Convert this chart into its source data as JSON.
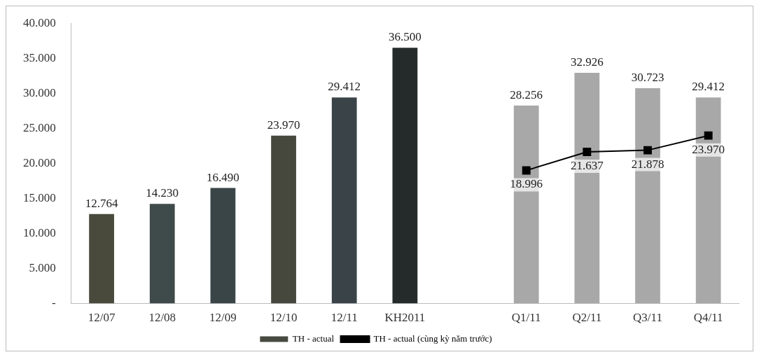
{
  "chart_data": {
    "type": "bar",
    "categories": [
      "12/07",
      "12/08",
      "12/09",
      "12/10",
      "12/11",
      "KH2011",
      null,
      "Q1/11",
      "Q2/11",
      "Q3/11",
      "Q4/11"
    ],
    "ylim": [
      0,
      40000
    ],
    "yticks": [
      {
        "value": 0,
        "label": "-"
      },
      {
        "value": 5000,
        "label": "5.000"
      },
      {
        "value": 10000,
        "label": "10.000"
      },
      {
        "value": 15000,
        "label": "15.000"
      },
      {
        "value": 20000,
        "label": "20.000"
      },
      {
        "value": 25000,
        "label": "25.000"
      },
      {
        "value": 30000,
        "label": "30.000"
      },
      {
        "value": 35000,
        "label": "35.000"
      },
      {
        "value": 40000,
        "label": "40.000"
      }
    ],
    "grid": false,
    "legend": "bottom",
    "series": [
      {
        "name": "TH - actual",
        "color": "#474a40",
        "colors": [
          "#4a4a3c",
          "#3f4a4a",
          "#3a4548",
          "#46483e",
          "#3a4448",
          "#252b2b",
          null,
          "#a8a8a8",
          "#a8a8a8",
          "#a8a8a8",
          "#a8a8a8"
        ],
        "values": [
          12764,
          14230,
          16490,
          23970,
          29412,
          36500,
          null,
          28256,
          32926,
          30723,
          29412
        ],
        "value_labels": [
          "12.764",
          "14.230",
          "16.490",
          "23.970",
          "29.412",
          "36.500",
          null,
          "28.256",
          "32.926",
          "30.723",
          "29.412"
        ]
      },
      {
        "name": "TH - actual (cùng kỳ năm trước)",
        "type": "line",
        "color": "#000000",
        "marker": "square",
        "line_style": "solid",
        "values": [
          null,
          null,
          null,
          null,
          null,
          null,
          null,
          18996,
          21637,
          21878,
          23970
        ],
        "value_labels": [
          null,
          null,
          null,
          null,
          null,
          null,
          null,
          "18.996",
          "21.637",
          "21.878",
          "23.970"
        ]
      }
    ]
  }
}
